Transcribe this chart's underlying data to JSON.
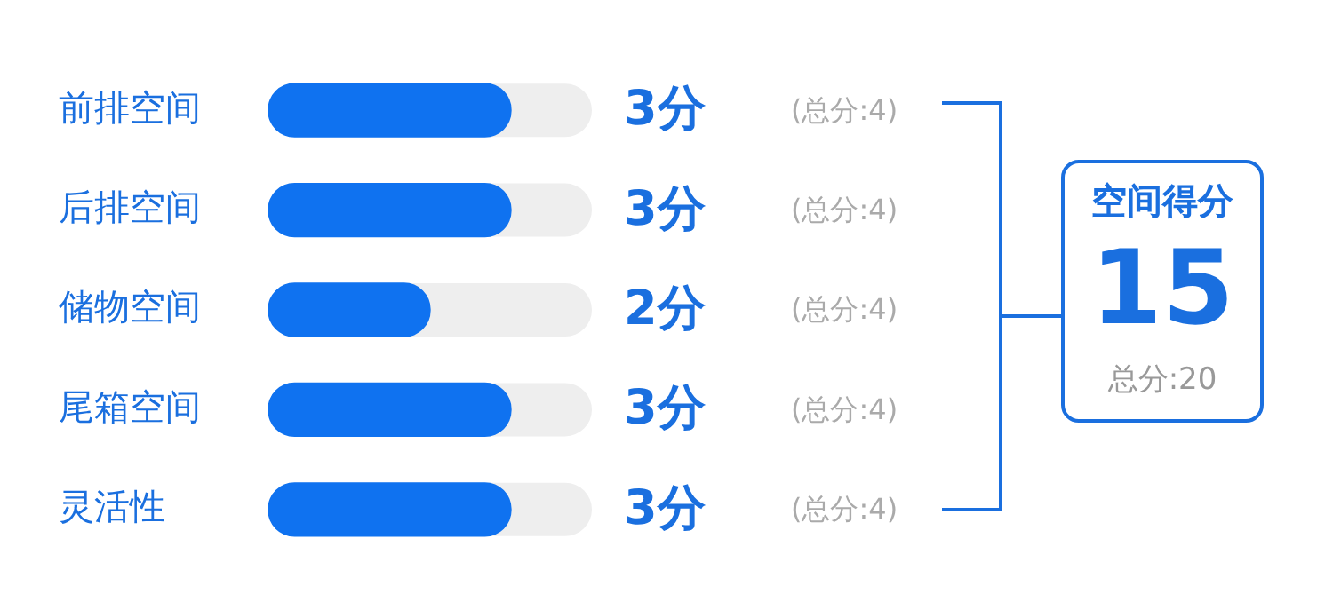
{
  "chart_data": {
    "type": "bar",
    "orientation": "horizontal",
    "categories": [
      "前排空间",
      "后排空间",
      "储物空间",
      "尾箱空间",
      "灵活性"
    ],
    "values": [
      3,
      3,
      2,
      3,
      3
    ],
    "color": "#0f72f0",
    "xlim": [
      0,
      4
    ],
    "tick_labels": "y",
    "legend": false,
    "value_labels": [
      "3分",
      "3分",
      "2分",
      "3分",
      "3分"
    ],
    "annotations": [
      "(总分:4)",
      "(总分:4)",
      "(总分:4)",
      "(总分:4)",
      "(总分:4)",
      "空间得分",
      "15",
      "总分:20"
    ]
  }
}
